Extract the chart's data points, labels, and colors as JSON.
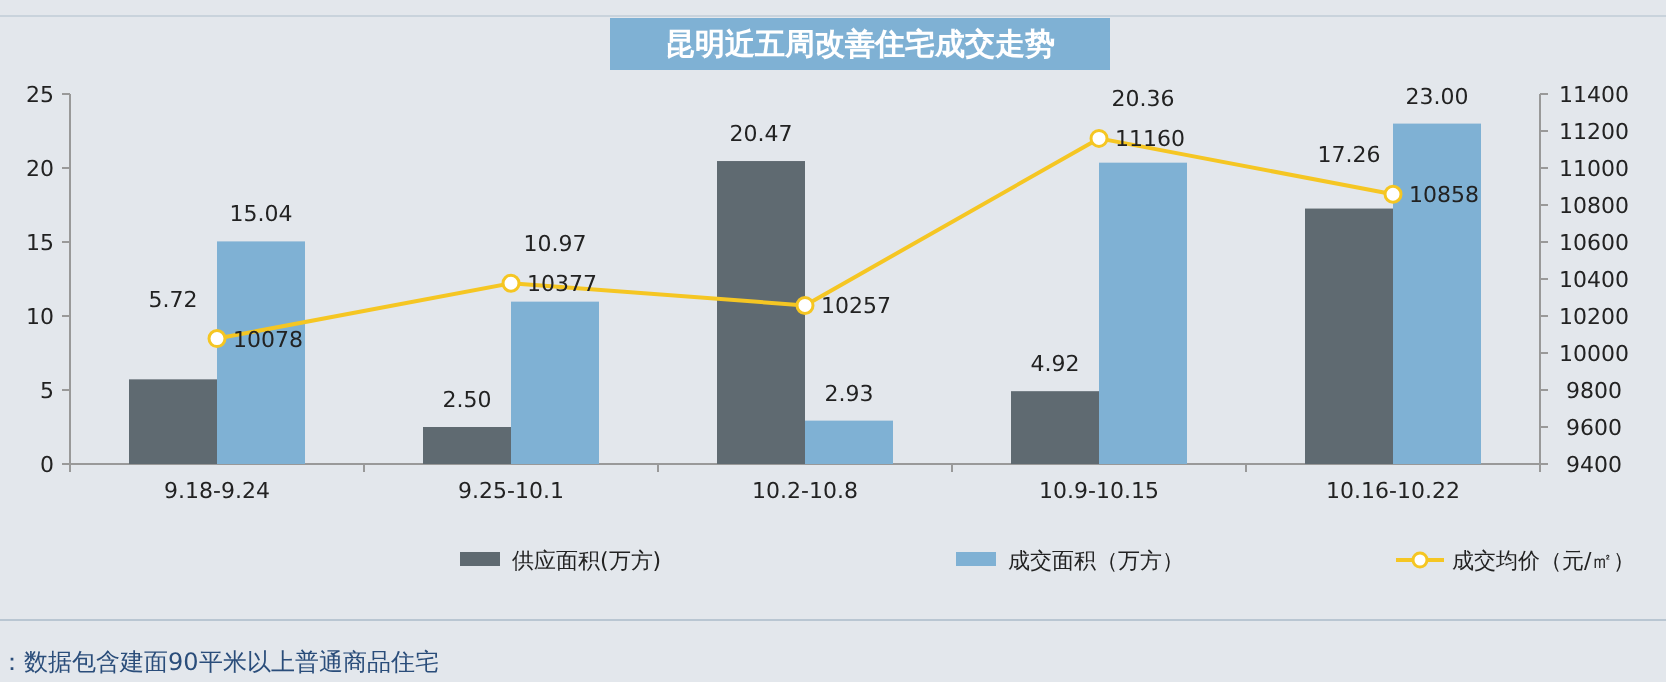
{
  "chart_data": {
    "type": "bar",
    "title": "昆明近五周改善住宅成交走势",
    "categories": [
      "9.18-9.24",
      "9.25-10.1",
      "10.2-10.8",
      "10.9-10.15",
      "10.16-10.22"
    ],
    "series": [
      {
        "name": "供应面积(万方)",
        "color": "#5f6a71",
        "values": [
          5.72,
          2.5,
          20.47,
          4.92,
          17.26
        ]
      },
      {
        "name": "成交面积（万方）",
        "color": "#7fb1d4",
        "values": [
          15.04,
          10.97,
          2.93,
          20.36,
          23.0
        ]
      },
      {
        "name": "成交均价（元/㎡）",
        "type": "line",
        "axis": "y2",
        "color": "#f5c623",
        "marker": "circle",
        "values": [
          10078,
          10377,
          10257,
          11160,
          10858
        ]
      }
    ],
    "value_labels": [
      [
        "5.72",
        "2.50",
        "20.47",
        "4.92",
        "17.26"
      ],
      [
        "15.04",
        "10.97",
        "2.93",
        "20.36",
        "23.00"
      ],
      [
        "10078",
        "10377",
        "10257",
        "11160",
        "10858"
      ]
    ],
    "ylim": [
      0,
      25
    ],
    "yticks": [
      0,
      5,
      10,
      15,
      20,
      25
    ],
    "y2lim": [
      9400,
      11400
    ],
    "y2ticks": [
      9400,
      9600,
      9800,
      10000,
      10200,
      10400,
      10600,
      10800,
      11000,
      11200,
      11400
    ],
    "grid": false,
    "legend": "bottom",
    "annotations": [
      "：数据包含建面90平米以上普通商品住宅"
    ]
  }
}
